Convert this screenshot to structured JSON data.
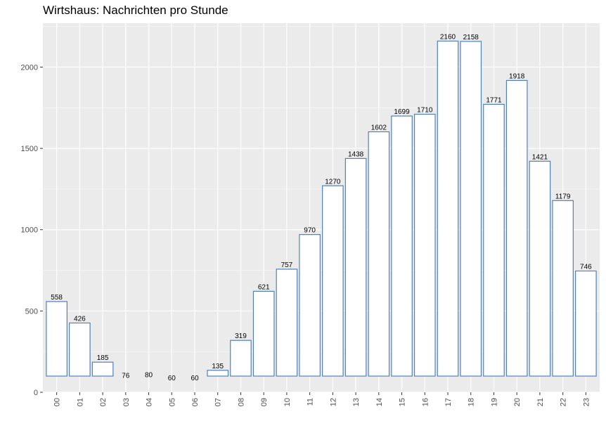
{
  "chart_data": {
    "type": "bar",
    "title": "Wirtshaus: Nachrichten pro Stunde",
    "xlabel": "",
    "ylabel": "",
    "categories": [
      "00",
      "01",
      "02",
      "03",
      "04",
      "05",
      "06",
      "07",
      "08",
      "09",
      "10",
      "11",
      "12",
      "13",
      "14",
      "15",
      "16",
      "17",
      "18",
      "19",
      "20",
      "21",
      "22",
      "23"
    ],
    "values": [
      558,
      426,
      185,
      76,
      80,
      60,
      60,
      135,
      319,
      621,
      757,
      970,
      1270,
      1438,
      1602,
      1699,
      1710,
      2160,
      2158,
      1771,
      1918,
      1421,
      1179,
      746
    ],
    "ylim": [
      0,
      2270
    ],
    "yticks": [
      0,
      500,
      1000,
      1500,
      2000
    ],
    "grid": true,
    "legend": "none",
    "x_tick_rotation_deg": 90,
    "data_labels": true,
    "colors": {
      "panel_background": "#ebebeb",
      "grid_major": "#ffffff",
      "bar_fill": "#ffffff",
      "bar_outline": "#4f81bd",
      "tick_text": "#4d4d4d",
      "label_text": "#000000"
    }
  }
}
